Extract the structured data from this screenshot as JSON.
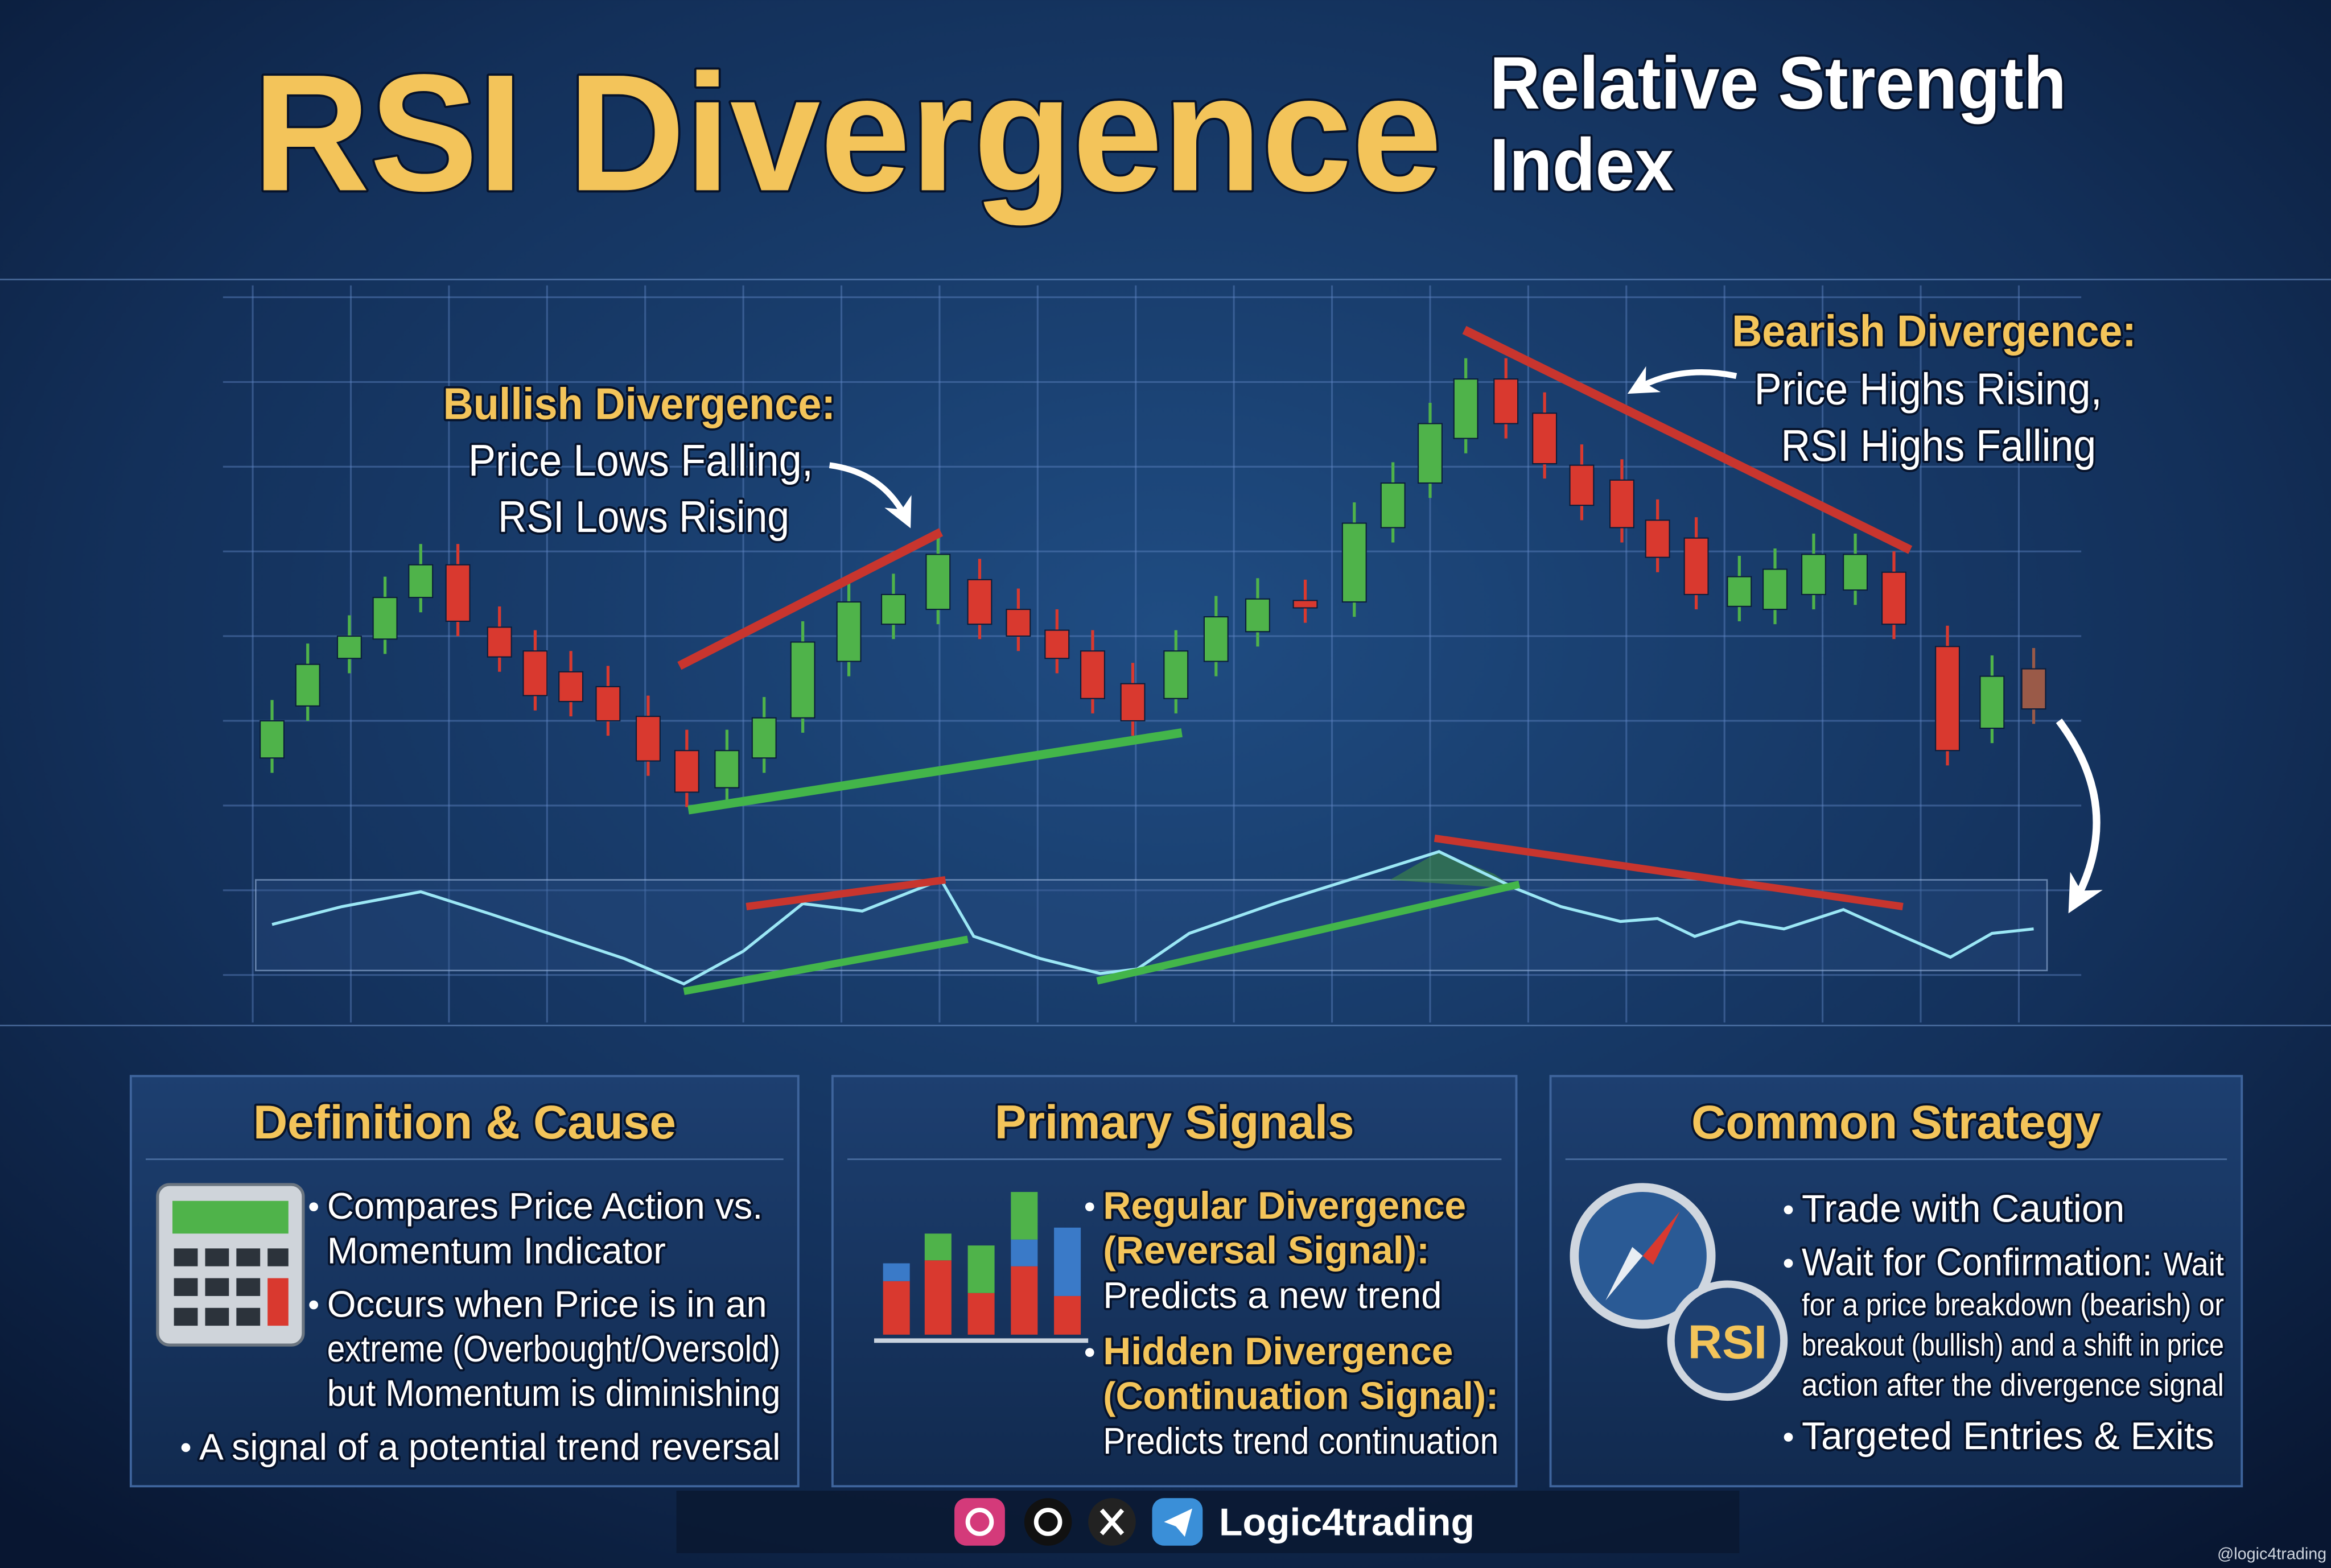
{
  "header": {
    "title": "RSI Divergence",
    "subtitle_lines": [
      "Relative Strength",
      "Index"
    ]
  },
  "annotations": {
    "bullish": {
      "heading": "Bullish Divergence:",
      "lines": [
        "Price Lows Falling,",
        "RSI Lows Rising"
      ]
    },
    "bearish": {
      "heading": "Bearish Divergence:",
      "lines": [
        "Price Highs Rising,",
        "RSI Highs Falling"
      ]
    }
  },
  "panels": [
    {
      "title": "Definition & Cause",
      "items": [
        {
          "lines": [
            "Compares Price Action vs.",
            "Momentum Indicator"
          ]
        },
        {
          "lines": [
            "Occurs when Price is in an",
            "extreme (Overbought/Oversold)",
            "but Momentum is diminishing"
          ]
        },
        {
          "lines": [
            "A signal of a potential trend reversal"
          ]
        }
      ]
    },
    {
      "title": "Primary Signals",
      "items": [
        {
          "lead": [
            "Regular Divergence",
            "(Reversal Signal):"
          ],
          "lines": [
            "Predicts a new trend"
          ]
        },
        {
          "lead": [
            "Hidden Divergence",
            "(Continuation Signal):"
          ],
          "lines": [
            "Predicts trend continuation"
          ]
        }
      ]
    },
    {
      "title": "Common Strategy",
      "icon_label": "RSI",
      "items": [
        {
          "lead": [
            "Trade with Caution"
          ],
          "lines": []
        },
        {
          "lead": [
            "Wait for Confirmation:"
          ],
          "inline": "Wait",
          "lines": [
            "for a price breakdown (bearish) or",
            "breakout (bullish) and a shift in price",
            "action after the divergence signal"
          ]
        },
        {
          "lead": [
            "Targeted Entries & Exits"
          ],
          "lines": []
        }
      ]
    }
  ],
  "footer": {
    "brand": "Logic4trading",
    "watermark": "@logic4trading"
  }
}
